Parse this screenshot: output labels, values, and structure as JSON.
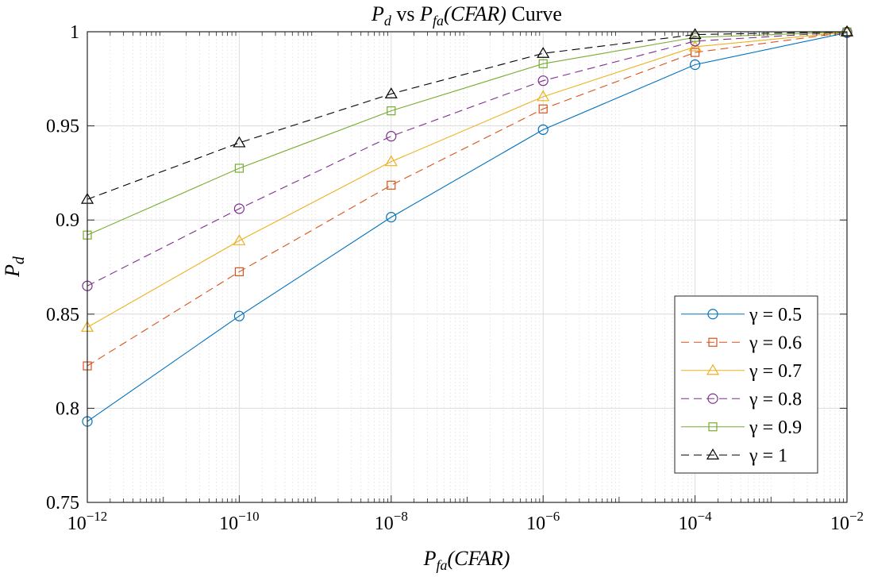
{
  "chart_data": {
    "type": "line",
    "title": "P_d vs P_fa(CFAR) Curve",
    "title_parts": {
      "main": "P",
      "main_sub": "d",
      "mid": " vs ",
      "second": "P",
      "second_sub": "fa",
      "paren": "(CFAR)",
      "tail": " Curve"
    },
    "xlabel_parts": {
      "main": "P",
      "sub": "fa",
      "paren": "(CFAR)"
    },
    "ylabel_parts": {
      "main": "P",
      "sub": "d"
    },
    "x_scale": "log",
    "x": [
      1e-12,
      1e-10,
      1e-08,
      1e-06,
      0.0001,
      0.01
    ],
    "xlim": [
      1e-12,
      0.01
    ],
    "ylim": [
      0.75,
      1.0
    ],
    "grid": true,
    "minor_grid": true,
    "x_ticks": [
      {
        "base": "10",
        "exp": "−12",
        "value": 1e-12
      },
      {
        "base": "10",
        "exp": "−10",
        "value": 1e-10
      },
      {
        "base": "10",
        "exp": "−8",
        "value": 1e-08
      },
      {
        "base": "10",
        "exp": "−6",
        "value": 1e-06
      },
      {
        "base": "10",
        "exp": "−4",
        "value": 0.0001
      },
      {
        "base": "10",
        "exp": "−2",
        "value": 0.01
      }
    ],
    "y_ticks": [
      {
        "label": "0.75",
        "value": 0.75
      },
      {
        "label": "0.8",
        "value": 0.8
      },
      {
        "label": "0.85",
        "value": 0.85
      },
      {
        "label": "0.9",
        "value": 0.9
      },
      {
        "label": "0.95",
        "value": 0.95
      },
      {
        "label": "1",
        "value": 1.0
      }
    ],
    "legend_position": "lower-right",
    "series": [
      {
        "name": "γ = 0.5",
        "gamma": "0.5",
        "color": "#0072BD",
        "dash": "solid",
        "marker": "circle",
        "values": [
          0.793,
          0.849,
          0.9015,
          0.948,
          0.9825,
          0.9995
        ]
      },
      {
        "name": "γ = 0.6",
        "gamma": "0.6",
        "color": "#D95319",
        "dash": "dashed",
        "marker": "square",
        "values": [
          0.8225,
          0.8725,
          0.9185,
          0.959,
          0.989,
          0.9997
        ]
      },
      {
        "name": "γ = 0.7",
        "gamma": "0.7",
        "color": "#EDB120",
        "dash": "solid",
        "marker": "triangle",
        "values": [
          0.843,
          0.889,
          0.931,
          0.9655,
          0.992,
          0.9998
        ]
      },
      {
        "name": "γ = 0.8",
        "gamma": "0.8",
        "color": "#7E2F8E",
        "dash": "dashed",
        "marker": "circle",
        "values": [
          0.865,
          0.906,
          0.9445,
          0.974,
          0.995,
          0.9999
        ]
      },
      {
        "name": "γ = 0.9",
        "gamma": "0.9",
        "color": "#77AC30",
        "dash": "solid",
        "marker": "square",
        "values": [
          0.892,
          0.9275,
          0.958,
          0.983,
          0.997,
          0.9999
        ]
      },
      {
        "name": "γ = 1",
        "gamma": "1",
        "color": "#000000",
        "dash": "dashed",
        "marker": "triangle",
        "values": [
          0.911,
          0.941,
          0.967,
          0.9885,
          0.9985,
          1.0
        ]
      }
    ]
  }
}
